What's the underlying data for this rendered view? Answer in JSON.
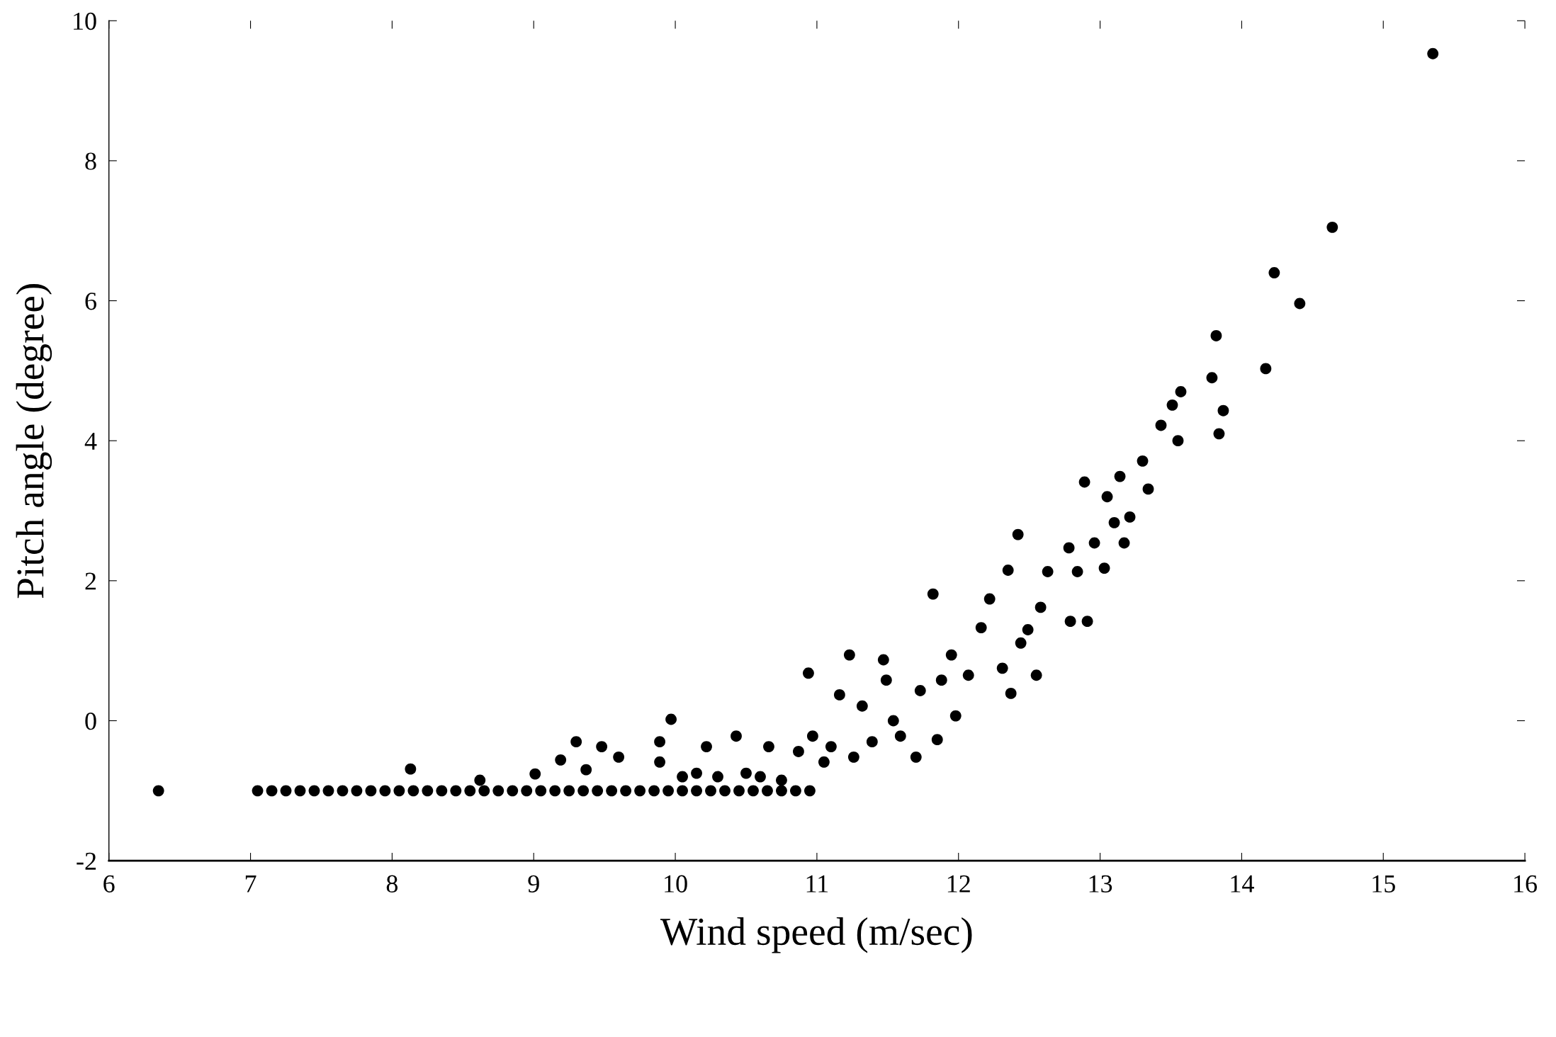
{
  "chart_data": {
    "type": "scatter",
    "xlabel": "Wind speed (m/sec)",
    "ylabel": "Pitch angle (degree)",
    "xlim": [
      6,
      16
    ],
    "xticks": [
      6,
      7,
      8,
      9,
      10,
      11,
      12,
      13,
      14,
      15,
      16
    ],
    "ylim": [
      -2,
      10
    ],
    "yticks": [
      -2,
      0,
      2,
      4,
      6,
      8,
      10
    ],
    "grid": false,
    "marker": "circle",
    "series": [
      {
        "color": "#000000",
        "x": [
          6.35,
          7.05,
          7.15,
          7.25,
          7.35,
          7.45,
          7.55,
          7.65,
          7.75,
          7.85,
          7.95,
          8.05,
          8.15,
          8.25,
          8.35,
          8.45,
          8.55,
          8.65,
          8.75,
          8.85,
          8.95,
          9.05,
          9.15,
          9.25,
          9.35,
          9.45,
          9.55,
          9.65,
          9.75,
          9.85,
          9.95,
          10.05,
          10.15,
          10.25,
          10.35,
          10.45,
          10.55,
          10.65,
          10.75,
          10.85,
          10.95,
          8.13,
          8.62,
          9.01,
          9.19,
          9.3,
          9.37,
          9.48,
          9.6,
          9.89,
          9.97,
          9.89,
          10.05,
          10.15,
          10.22,
          10.3,
          10.43,
          10.5,
          10.6,
          10.66,
          10.75,
          10.87,
          10.94,
          10.97,
          11.05,
          11.1,
          11.16,
          11.23,
          11.26,
          11.32,
          11.39,
          11.47,
          11.49,
          11.54,
          11.59,
          11.7,
          11.73,
          11.82,
          11.85,
          11.88,
          11.95,
          11.98,
          12.07,
          12.16,
          12.22,
          12.31,
          12.35,
          12.37,
          12.42,
          12.44,
          12.49,
          12.55,
          12.58,
          12.63,
          12.78,
          12.79,
          12.84,
          12.89,
          12.91,
          12.96,
          13.03,
          13.05,
          13.1,
          13.14,
          13.17,
          13.21,
          13.3,
          13.34,
          13.43,
          13.51,
          13.55,
          13.57,
          13.79,
          13.82,
          13.84,
          13.87,
          14.17,
          14.23,
          14.41,
          14.64,
          15.35
        ],
        "values": [
          -1.0,
          -1.0,
          -1.0,
          -1.0,
          -1.0,
          -1.0,
          -1.0,
          -1.0,
          -1.0,
          -1.0,
          -1.0,
          -1.0,
          -1.0,
          -1.0,
          -1.0,
          -1.0,
          -1.0,
          -1.0,
          -1.0,
          -1.0,
          -1.0,
          -1.0,
          -1.0,
          -1.0,
          -1.0,
          -1.0,
          -1.0,
          -1.0,
          -1.0,
          -1.0,
          -1.0,
          -1.0,
          -1.0,
          -1.0,
          -1.0,
          -1.0,
          -1.0,
          -1.0,
          -1.0,
          -1.0,
          -1.0,
          -0.69,
          -0.85,
          -0.76,
          -0.56,
          -0.3,
          -0.7,
          -0.37,
          -0.52,
          -0.3,
          0.02,
          -0.59,
          -0.8,
          -0.75,
          -0.37,
          -0.8,
          -0.22,
          -0.75,
          -0.8,
          -0.37,
          -0.85,
          -0.44,
          0.68,
          -0.22,
          -0.59,
          -0.37,
          0.37,
          0.94,
          -0.52,
          0.21,
          -0.3,
          0.87,
          0.58,
          0.0,
          -0.22,
          -0.52,
          0.43,
          1.81,
          -0.27,
          0.58,
          0.94,
          0.07,
          0.65,
          1.33,
          1.74,
          0.75,
          2.15,
          0.39,
          2.66,
          1.11,
          1.3,
          0.65,
          1.62,
          2.13,
          2.47,
          1.42,
          2.13,
          3.41,
          1.42,
          2.54,
          2.18,
          3.2,
          2.83,
          3.49,
          2.54,
          2.91,
          3.71,
          3.31,
          4.22,
          4.51,
          4.0,
          4.7,
          4.9,
          5.5,
          4.1,
          4.43,
          5.03,
          6.4,
          5.96,
          7.05,
          9.53
        ]
      }
    ]
  }
}
